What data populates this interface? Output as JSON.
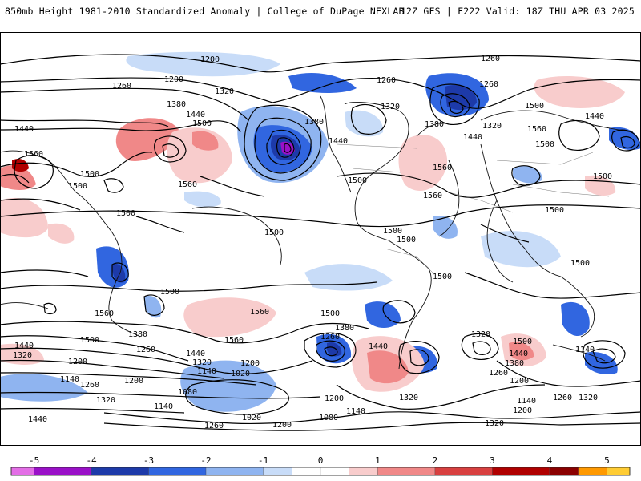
{
  "header": {
    "title": "850mb Height 1981-2010 Standardized Anomaly | College of DuPage NEXLAB",
    "run": "12Z GFS | F222 Valid: 18Z THU APR 03 2025"
  },
  "contour_labels": [
    "1200",
    "1260",
    "1320",
    "1380",
    "1440",
    "1500",
    "1560",
    "1020",
    "1080",
    "1140"
  ],
  "colorbar": {
    "ticks": [
      "-5",
      "-4",
      "-3",
      "-2",
      "-1",
      "0",
      "1",
      "2",
      "3",
      "4",
      "5"
    ],
    "colors": [
      "#e36ee6",
      "#9a10c8",
      "#1d3aa9",
      "#3166e0",
      "#8fb4f0",
      "#c8dcf8",
      "#ffffff",
      "#ffffff",
      "#f8cccc",
      "#f08888",
      "#d84040",
      "#b00000",
      "#8a0000",
      "#ff9900",
      "#ffcc33"
    ]
  }
}
